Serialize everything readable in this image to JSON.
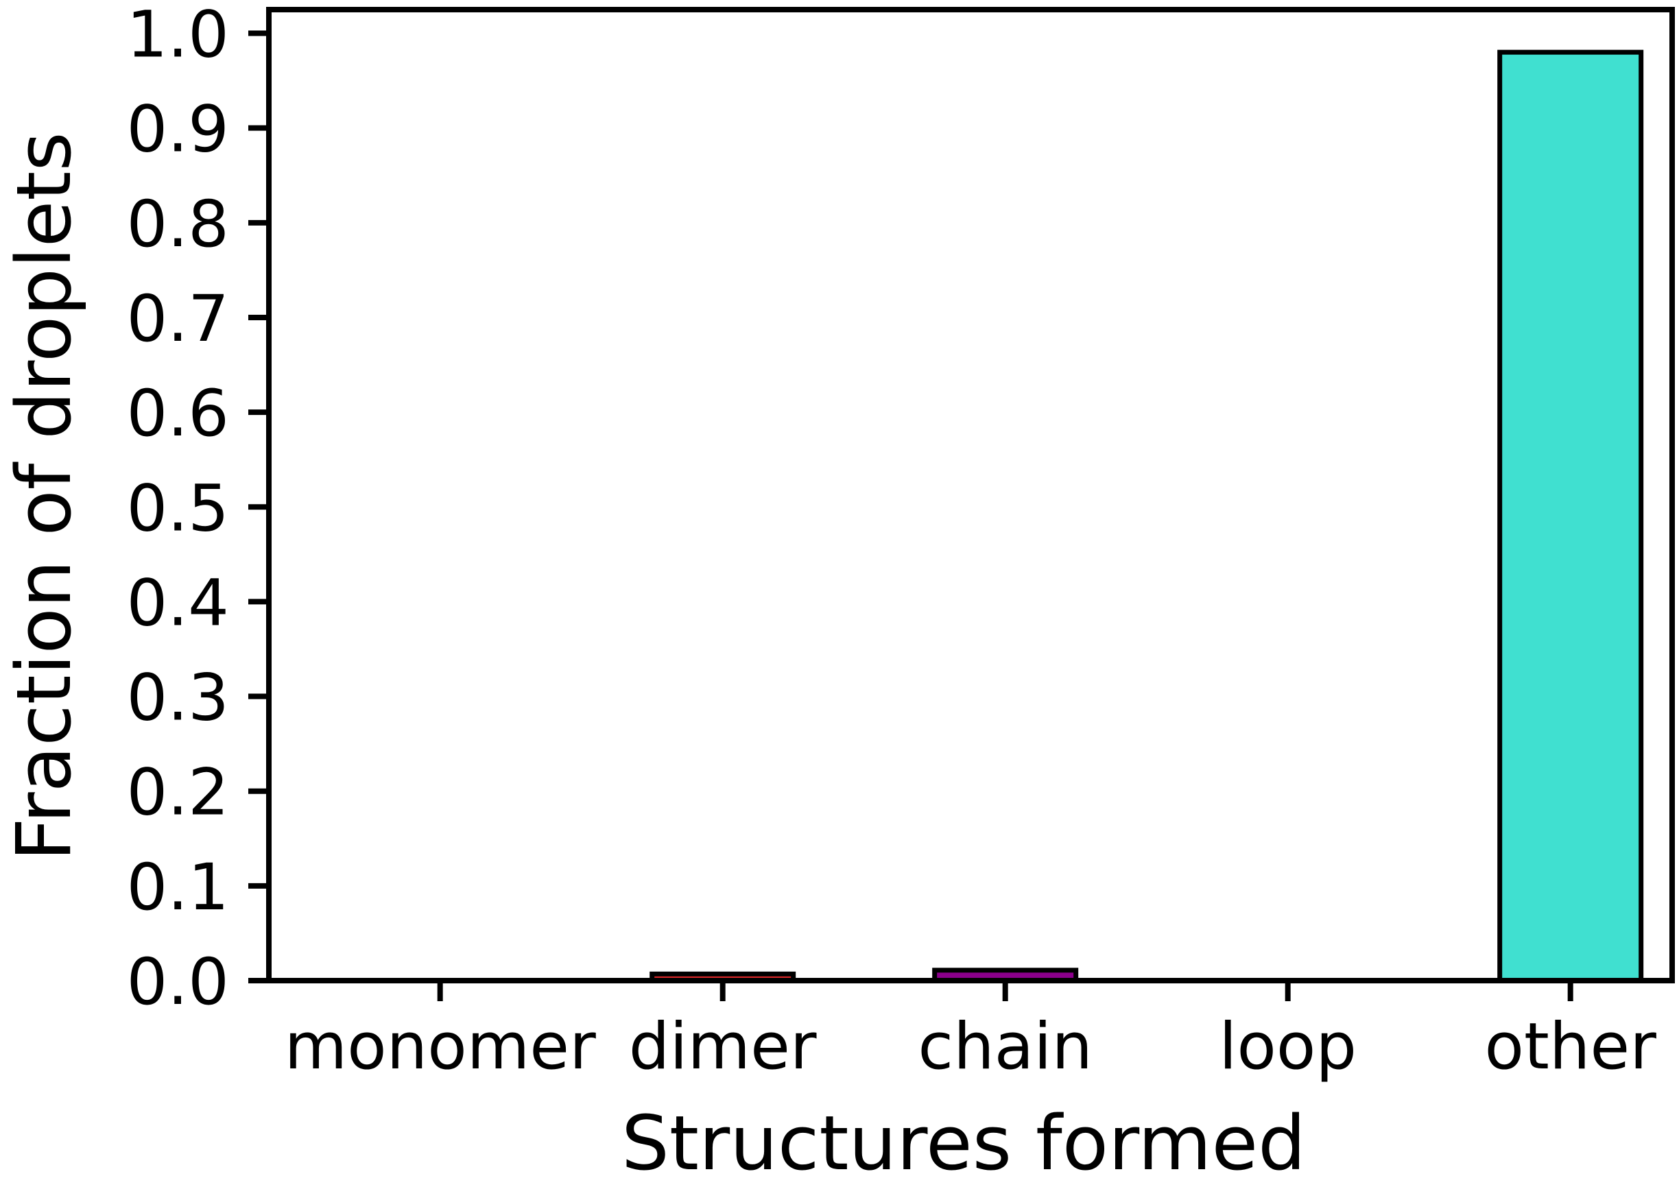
{
  "chart_data": {
    "type": "bar",
    "title": "",
    "xlabel": "Structures formed",
    "ylabel": "Fraction of droplets",
    "categories": [
      "monomer",
      "dimer",
      "chain",
      "loop",
      "other"
    ],
    "values": [
      0.0,
      0.007,
      0.011,
      0.0,
      0.98
    ],
    "colors": [
      "#ffffff",
      "#d62728",
      "#8b008b",
      "#ffffff",
      "#40e0d0"
    ],
    "edgecolor": "#000000",
    "ylim": [
      0.0,
      1.025
    ],
    "yticks": [
      0.0,
      0.1,
      0.2,
      0.3,
      0.4,
      0.5,
      0.6,
      0.7,
      0.8,
      0.9,
      1.0
    ],
    "ytick_labels": [
      "0.0",
      "0.1",
      "0.2",
      "0.3",
      "0.4",
      "0.5",
      "0.6",
      "0.7",
      "0.8",
      "0.9",
      "1.0"
    ],
    "grid": false,
    "legend": null
  }
}
